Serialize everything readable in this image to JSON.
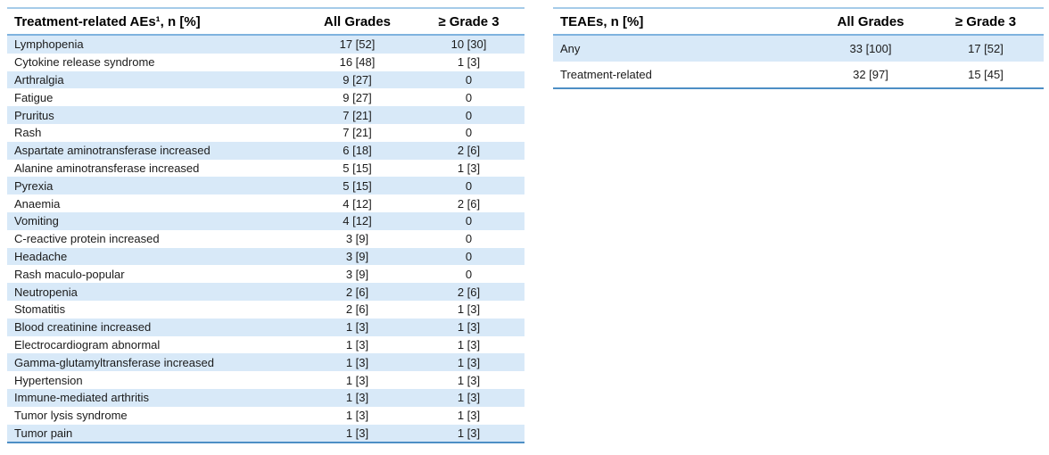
{
  "page": {
    "background": "#ffffff"
  },
  "colors": {
    "row_shade": "#d8e9f8",
    "border_top": "#a5cbe9",
    "border_header_separator": "#7fb3df",
    "border_bottom": "#4e8fc5",
    "header_text": "#000000",
    "body_text": "#1b1b1b"
  },
  "left_table": {
    "headers": {
      "term": "Treatment-related AEs¹, n [%]",
      "all_grades": "All Grades",
      "grade3": "≥ Grade 3"
    },
    "rows": [
      {
        "term": "Lymphopenia",
        "all_grades": "17 [52]",
        "grade3": "10 [30]"
      },
      {
        "term": "Cytokine release syndrome",
        "all_grades": "16 [48]",
        "grade3": "1 [3]"
      },
      {
        "term": "Arthralgia",
        "all_grades": "9 [27]",
        "grade3": "0"
      },
      {
        "term": "Fatigue",
        "all_grades": "9 [27]",
        "grade3": "0"
      },
      {
        "term": "Pruritus",
        "all_grades": "7 [21]",
        "grade3": "0"
      },
      {
        "term": "Rash",
        "all_grades": "7 [21]",
        "grade3": "0"
      },
      {
        "term": "Aspartate aminotransferase increased",
        "all_grades": "6 [18]",
        "grade3": "2 [6]"
      },
      {
        "term": "Alanine aminotransferase increased",
        "all_grades": "5 [15]",
        "grade3": "1 [3]"
      },
      {
        "term": "Pyrexia",
        "all_grades": "5 [15]",
        "grade3": "0"
      },
      {
        "term": "Anaemia",
        "all_grades": "4 [12]",
        "grade3": "2 [6]"
      },
      {
        "term": "Vomiting",
        "all_grades": "4 [12]",
        "grade3": "0"
      },
      {
        "term": "C-reactive protein increased",
        "all_grades": "3 [9]",
        "grade3": "0"
      },
      {
        "term": "Headache",
        "all_grades": "3 [9]",
        "grade3": "0"
      },
      {
        "term": "Rash maculo-popular",
        "all_grades": "3 [9]",
        "grade3": "0"
      },
      {
        "term": "Neutropenia",
        "all_grades": "2 [6]",
        "grade3": "2 [6]"
      },
      {
        "term": "Stomatitis",
        "all_grades": "2 [6]",
        "grade3": "1 [3]"
      },
      {
        "term": "Blood creatinine increased",
        "all_grades": "1 [3]",
        "grade3": "1 [3]"
      },
      {
        "term": "Electrocardiogram abnormal",
        "all_grades": "1 [3]",
        "grade3": "1 [3]"
      },
      {
        "term": "Gamma-glutamyltransferase increased",
        "all_grades": "1 [3]",
        "grade3": "1 [3]"
      },
      {
        "term": "Hypertension",
        "all_grades": "1 [3]",
        "grade3": "1 [3]"
      },
      {
        "term": "Immune-mediated arthritis",
        "all_grades": "1 [3]",
        "grade3": "1 [3]"
      },
      {
        "term": "Tumor lysis syndrome",
        "all_grades": "1 [3]",
        "grade3": "1 [3]"
      },
      {
        "term": "Tumor pain",
        "all_grades": "1 [3]",
        "grade3": "1 [3]"
      }
    ]
  },
  "right_table": {
    "headers": {
      "term": "TEAEs, n [%]",
      "all_grades": "All Grades",
      "grade3": "≥ Grade 3"
    },
    "rows": [
      {
        "term": "Any",
        "all_grades": "33 [100]",
        "grade3": "17 [52]"
      },
      {
        "term": "Treatment-related",
        "all_grades": "32 [97]",
        "grade3": "15 [45]"
      }
    ]
  }
}
